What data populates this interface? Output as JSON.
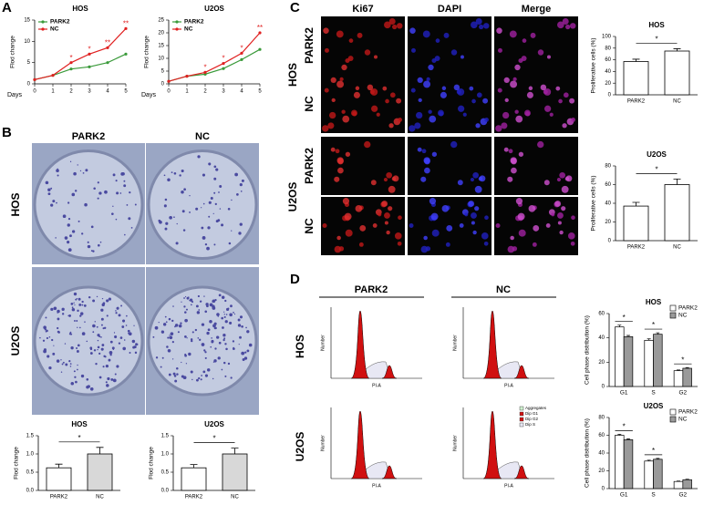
{
  "labels": {
    "panel_a": "A",
    "panel_b": "B",
    "panel_c": "C",
    "panel_d": "D",
    "b_columns": [
      "PARK2",
      "NC"
    ],
    "b_rows": [
      "HOS",
      "U2OS"
    ],
    "c_columns": [
      "Ki67",
      "DAPI",
      "Merge"
    ],
    "c_rows": [
      "PARK2",
      "NC",
      "PARK2",
      "NC"
    ],
    "c_groups": [
      "HOS",
      "U2OS"
    ],
    "d_columns": [
      "PARK2",
      "NC"
    ],
    "d_rows": [
      "HOS",
      "U2OS"
    ],
    "flow_x_label": "PI-A",
    "flow_y_label": "Number",
    "flow_legend": [
      "Aggregates",
      "Dip G1",
      "Dip G2",
      "Dip S"
    ]
  },
  "chart_data": [
    {
      "type": "line",
      "title": "HOS",
      "xlabel": "Days",
      "ylabel": "Flod change",
      "x": [
        0,
        1,
        2,
        3,
        4,
        5
      ],
      "xlim": [
        0,
        5
      ],
      "xticks": [
        0,
        1,
        2,
        3,
        4,
        5
      ],
      "ylim": [
        0,
        15
      ],
      "yticks": [
        0,
        5,
        10,
        15
      ],
      "series": [
        {
          "name": "PARK2",
          "color": "#3a9a3a",
          "values": [
            1,
            2,
            3.5,
            4,
            5,
            7
          ]
        },
        {
          "name": "NC",
          "color": "#e02020",
          "values": [
            1,
            2,
            5,
            7,
            8.5,
            13
          ]
        }
      ],
      "annotations": [
        {
          "x": 2,
          "label": "*"
        },
        {
          "x": 3,
          "label": "*"
        },
        {
          "x": 4,
          "label": "**"
        },
        {
          "x": 5,
          "label": "**"
        }
      ]
    },
    {
      "type": "line",
      "title": "U2OS",
      "xlabel": "Days",
      "ylabel": "Flod change",
      "x": [
        0,
        1,
        2,
        3,
        4,
        5
      ],
      "xlim": [
        0,
        5
      ],
      "xticks": [
        0,
        1,
        2,
        3,
        4,
        5
      ],
      "ylim": [
        0,
        25
      ],
      "yticks": [
        0,
        5,
        10,
        15,
        20,
        25
      ],
      "series": [
        {
          "name": "PARK2",
          "color": "#3a9a3a",
          "values": [
            1,
            3,
            3.8,
            6,
            9.5,
            13.5
          ]
        },
        {
          "name": "NC",
          "color": "#e02020",
          "values": [
            1,
            3,
            4.5,
            8,
            12,
            20
          ]
        }
      ],
      "annotations": [
        {
          "x": 2,
          "label": "*"
        },
        {
          "x": 3,
          "label": "*"
        },
        {
          "x": 4,
          "label": "*"
        },
        {
          "x": 5,
          "label": "**"
        }
      ]
    },
    {
      "type": "bar",
      "title": "HOS",
      "ylabel": "Flod change",
      "categories": [
        "PARK2",
        "NC"
      ],
      "values": [
        0.62,
        1.0
      ],
      "errors": [
        0.1,
        0.18
      ],
      "colors": [
        "#ffffff",
        "#d8d8d8"
      ],
      "ylim": [
        0,
        1.5
      ],
      "yticks": [
        {
          "value": 0,
          "label": "0.0"
        },
        0.5,
        {
          "value": 1,
          "label": "1.0"
        },
        1.5
      ],
      "significance": "*"
    },
    {
      "type": "bar",
      "title": "U2OS",
      "ylabel": "Flod change",
      "categories": [
        "PARK2",
        "NC"
      ],
      "values": [
        0.62,
        1.0
      ],
      "errors": [
        0.09,
        0.16
      ],
      "colors": [
        "#ffffff",
        "#d8d8d8"
      ],
      "ylim": [
        0,
        1.5
      ],
      "yticks": [
        {
          "value": 0,
          "label": "0.0"
        },
        0.5,
        {
          "value": 1,
          "label": "1.0"
        },
        1.5
      ],
      "significance": "*"
    },
    {
      "type": "bar",
      "title": "HOS",
      "ylabel": "Proliferative cells (%)",
      "categories": [
        "PARK2",
        "NC"
      ],
      "values": [
        57,
        75
      ],
      "errors": [
        4,
        4
      ],
      "colors": [
        "#ffffff",
        "#ffffff"
      ],
      "ylim": [
        0,
        100
      ],
      "yticks": [
        0,
        20,
        40,
        60,
        80,
        100
      ],
      "significance": "*"
    },
    {
      "type": "bar",
      "title": "U2OS",
      "ylabel": "Proliferative cells (%)",
      "categories": [
        "PARK2",
        "NC"
      ],
      "values": [
        37,
        60
      ],
      "errors": [
        4,
        6
      ],
      "colors": [
        "#ffffff",
        "#ffffff"
      ],
      "ylim": [
        0,
        80
      ],
      "yticks": [
        0,
        20,
        40,
        60,
        80
      ],
      "significance": "*"
    },
    {
      "type": "grouped_bar",
      "title": "HOS",
      "ylabel": "Cell phase distribution (%)",
      "categories": [
        "G1",
        "S",
        "G2"
      ],
      "series": [
        {
          "name": "PARK2",
          "color": "#ffffff",
          "values": [
            49,
            38,
            13
          ],
          "errors": [
            1.5,
            1.2,
            0.6
          ]
        },
        {
          "name": "NC",
          "color": "#9a9a9a",
          "values": [
            41,
            43,
            15
          ],
          "errors": [
            1,
            1.2,
            0.6
          ]
        }
      ],
      "ylim": [
        0,
        60
      ],
      "yticks": [
        0,
        20,
        40,
        60
      ],
      "significance": [
        "*",
        "*",
        "*"
      ]
    },
    {
      "type": "grouped_bar",
      "title": "U2OS",
      "ylabel": "Cell phase distribution (%)",
      "categories": [
        "G1",
        "S",
        "G2"
      ],
      "series": [
        {
          "name": "PARK2",
          "color": "#ffffff",
          "values": [
            60,
            31,
            8
          ],
          "errors": [
            1,
            1,
            0.5
          ]
        },
        {
          "name": "NC",
          "color": "#9a9a9a",
          "values": [
            55,
            33,
            10
          ],
          "errors": [
            1,
            1,
            0.5
          ]
        }
      ],
      "ylim": [
        0,
        80
      ],
      "yticks": [
        0,
        20,
        40,
        60,
        80
      ],
      "significance": [
        "*",
        "*",
        null
      ]
    }
  ]
}
